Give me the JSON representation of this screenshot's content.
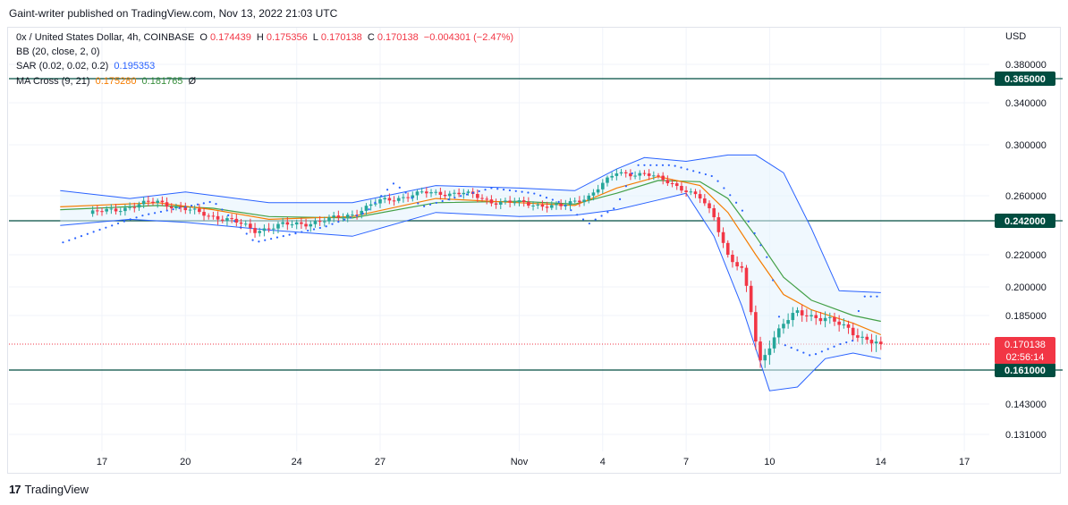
{
  "header": {
    "published": "Gaint-writer published on TradingView.com, Nov 13, 2022 21:03 UTC"
  },
  "legend": {
    "symbol": "0x / United States Dollar, 4h, COINBASE",
    "o_label": "O",
    "o": "0.174439",
    "h_label": "H",
    "h": "0.175356",
    "l_label": "L",
    "l": "0.170138",
    "c_label": "C",
    "c": "0.170138",
    "change": "−0.004301 (−2.47%)",
    "bb": "BB (20, close, 2, 0)",
    "sar_label": "SAR (0.02, 0.02, 0.2)",
    "sar_value": "0.195353",
    "ma_label": "MA Cross (9, 21)",
    "ma_fast": "0.175280",
    "ma_slow": "0.181765",
    "ma_extra": "Ø"
  },
  "currency": "USD",
  "footer": {
    "brand": "TradingView",
    "logo": "17"
  },
  "colors": {
    "up": "#26a69a",
    "down": "#f23645",
    "bb": "#2962ff",
    "bb_fill": "#e3f2fd",
    "sar": "#2962ff",
    "ma_fast": "#f57c00",
    "ma_slow": "#43a047",
    "level": "#004d40",
    "price": "#f23645"
  },
  "chart_data": {
    "type": "candlestick",
    "y_ticks": [
      0.38,
      0.34,
      0.3,
      0.26,
      0.22,
      0.2,
      0.185,
      0.143,
      0.131
    ],
    "y_tick_labels": [
      "0.380000",
      "0.340000",
      "0.300000",
      "0.260000",
      "0.220000",
      "0.200000",
      "0.185000",
      "0.143000",
      "0.131000"
    ],
    "x_ticks": [
      "17",
      "20",
      "24",
      "27",
      "Nov",
      "4",
      "7",
      "10",
      "14",
      "17"
    ],
    "x_tick_days": [
      -14,
      -11,
      -7,
      -4,
      1,
      4,
      7,
      10,
      14,
      17
    ],
    "levels": [
      {
        "value": 0.365,
        "label": "0.365000"
      },
      {
        "value": 0.242,
        "label": "0.242000"
      },
      {
        "value": 0.161,
        "label": "0.161000"
      }
    ],
    "last_price": {
      "value": 0.170138,
      "label": "0.170138",
      "countdown": "02:56:14"
    },
    "close_points": [
      [
        -14.5,
        0.247
      ],
      [
        -13.0,
        0.252
      ],
      [
        -12.0,
        0.256
      ],
      [
        -11.0,
        0.25
      ],
      [
        -9.5,
        0.243
      ],
      [
        -8.5,
        0.236
      ],
      [
        -7.5,
        0.239
      ],
      [
        -6.0,
        0.242
      ],
      [
        -5.0,
        0.247
      ],
      [
        -4.0,
        0.256
      ],
      [
        -2.5,
        0.262
      ],
      [
        -1.0,
        0.262
      ],
      [
        0.0,
        0.256
      ],
      [
        1.5,
        0.254
      ],
      [
        2.5,
        0.252
      ],
      [
        3.5,
        0.26
      ],
      [
        4.5,
        0.278
      ],
      [
        5.5,
        0.277
      ],
      [
        6.5,
        0.27
      ],
      [
        7.5,
        0.258
      ],
      [
        8.0,
        0.245
      ],
      [
        8.5,
        0.22
      ],
      [
        9.0,
        0.21
      ],
      [
        9.3,
        0.19
      ],
      [
        9.6,
        0.162
      ],
      [
        10.0,
        0.171
      ],
      [
        10.5,
        0.181
      ],
      [
        11.0,
        0.186
      ],
      [
        12.0,
        0.184
      ],
      [
        13.0,
        0.176
      ],
      [
        14.0,
        0.170138
      ]
    ],
    "bb_upper_points": [
      [
        -15.5,
        0.264
      ],
      [
        -13,
        0.258
      ],
      [
        -11,
        0.263
      ],
      [
        -8,
        0.255
      ],
      [
        -5,
        0.255
      ],
      [
        -2,
        0.268
      ],
      [
        1,
        0.266
      ],
      [
        3,
        0.264
      ],
      [
        4.5,
        0.281
      ],
      [
        5.5,
        0.29
      ],
      [
        7,
        0.287
      ],
      [
        8.5,
        0.292
      ],
      [
        9.5,
        0.292
      ],
      [
        10.5,
        0.278
      ],
      [
        11.5,
        0.237
      ],
      [
        12.5,
        0.198
      ],
      [
        14,
        0.197
      ]
    ],
    "bb_lower_points": [
      [
        -15.5,
        0.239
      ],
      [
        -13,
        0.243
      ],
      [
        -11,
        0.241
      ],
      [
        -8,
        0.236
      ],
      [
        -5,
        0.232
      ],
      [
        -2,
        0.248
      ],
      [
        1,
        0.245
      ],
      [
        3,
        0.246
      ],
      [
        4.5,
        0.25
      ],
      [
        6,
        0.257
      ],
      [
        7,
        0.262
      ],
      [
        8,
        0.232
      ],
      [
        9,
        0.19
      ],
      [
        10,
        0.15
      ],
      [
        11,
        0.152
      ],
      [
        12,
        0.165
      ],
      [
        13,
        0.167
      ],
      [
        14,
        0.165
      ]
    ],
    "ma_fast_points": [
      [
        -15.5,
        0.252
      ],
      [
        -12,
        0.255
      ],
      [
        -10,
        0.25
      ],
      [
        -8,
        0.243
      ],
      [
        -5,
        0.245
      ],
      [
        -2,
        0.258
      ],
      [
        1,
        0.255
      ],
      [
        3,
        0.253
      ],
      [
        4.5,
        0.266
      ],
      [
        6,
        0.275
      ],
      [
        7.5,
        0.268
      ],
      [
        8.5,
        0.248
      ],
      [
        9.5,
        0.22
      ],
      [
        10.5,
        0.196
      ],
      [
        11.5,
        0.188
      ],
      [
        13,
        0.181
      ],
      [
        14,
        0.175
      ]
    ],
    "ma_slow_points": [
      [
        -15.5,
        0.25
      ],
      [
        -12,
        0.253
      ],
      [
        -10,
        0.251
      ],
      [
        -8,
        0.245
      ],
      [
        -5,
        0.244
      ],
      [
        -2,
        0.255
      ],
      [
        1,
        0.256
      ],
      [
        3,
        0.254
      ],
      [
        4.5,
        0.262
      ],
      [
        6,
        0.272
      ],
      [
        7.5,
        0.271
      ],
      [
        8.5,
        0.258
      ],
      [
        9.5,
        0.232
      ],
      [
        10.5,
        0.206
      ],
      [
        11.5,
        0.193
      ],
      [
        13,
        0.185
      ],
      [
        14,
        0.182
      ]
    ],
    "sar_points": [
      [
        -15.4,
        0.228
      ],
      [
        -12.5,
        0.246
      ],
      [
        -10,
        0.256
      ],
      [
        -8.5,
        0.228
      ],
      [
        -6,
        0.238
      ],
      [
        -4.5,
        0.248
      ],
      [
        -3.5,
        0.27
      ],
      [
        -2.5,
        0.252
      ],
      [
        0,
        0.266
      ],
      [
        1.5,
        0.262
      ],
      [
        2.5,
        0.255
      ],
      [
        3.5,
        0.24
      ],
      [
        4.5,
        0.252
      ],
      [
        5.2,
        0.284
      ],
      [
        6.5,
        0.284
      ],
      [
        8,
        0.275
      ],
      [
        9,
        0.25
      ],
      [
        10,
        0.215
      ],
      [
        10.5,
        0.17
      ],
      [
        11.5,
        0.166
      ],
      [
        13,
        0.172
      ],
      [
        13.3,
        0.195
      ],
      [
        14,
        0.195
      ]
    ]
  }
}
